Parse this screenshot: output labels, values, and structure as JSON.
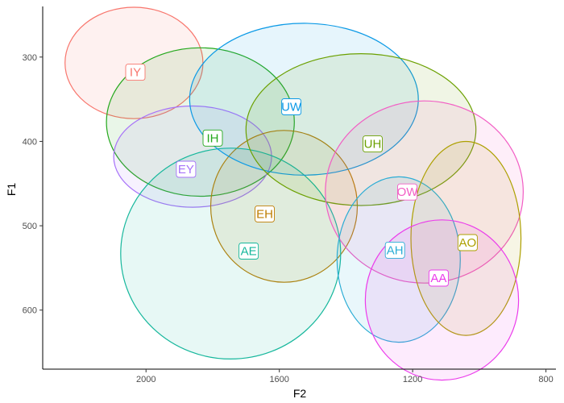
{
  "chart_data": {
    "type": "scatter",
    "subtype": "confidence-ellipses",
    "title": "",
    "xlabel": "F2",
    "ylabel": "F1",
    "x_reversed": true,
    "y_reversed": true,
    "xlim": [
      2310,
      770
    ],
    "ylim": [
      240,
      670
    ],
    "x_ticks": [
      2000,
      1600,
      1200,
      800
    ],
    "y_ticks": [
      300,
      400,
      500,
      600
    ],
    "grid": false,
    "legend": "none",
    "series": [
      {
        "name": "IY",
        "color": "#F8766D",
        "center_f2": 2036,
        "center_f1": 307,
        "rx_f2": 207,
        "ry_f1": 66,
        "label_f2": 2032,
        "label_f1": 318
      },
      {
        "name": "IH",
        "color": "#24A81C",
        "center_f2": 1837,
        "center_f1": 377,
        "rx_f2": 282,
        "ry_f1": 88,
        "label_f2": 1800,
        "label_f1": 396
      },
      {
        "name": "EY",
        "color": "#A772F9",
        "center_f2": 1860,
        "center_f1": 418,
        "rx_f2": 237,
        "ry_f1": 60,
        "label_f2": 1880,
        "label_f1": 433
      },
      {
        "name": "EH",
        "color": "#BD7C00",
        "center_f2": 1586,
        "center_f1": 477,
        "rx_f2": 220,
        "ry_f1": 90,
        "label_f2": 1644,
        "label_f1": 486
      },
      {
        "name": "AE",
        "color": "#16B79C",
        "center_f2": 1746,
        "center_f1": 533,
        "rx_f2": 330,
        "ry_f1": 125,
        "label_f2": 1692,
        "label_f1": 530
      },
      {
        "name": "UW",
        "color": "#0C9AE6",
        "center_f2": 1526,
        "center_f1": 350,
        "rx_f2": 343,
        "ry_f1": 90,
        "label_f2": 1564,
        "label_f1": 359
      },
      {
        "name": "UH",
        "color": "#6BA000",
        "center_f2": 1355,
        "center_f1": 386,
        "rx_f2": 345,
        "ry_f1": 90,
        "label_f2": 1320,
        "label_f1": 403
      },
      {
        "name": "OW",
        "color": "#F25DC4",
        "center_f2": 1165,
        "center_f1": 460,
        "rx_f2": 297,
        "ry_f1": 108,
        "label_f2": 1216,
        "label_f1": 460
      },
      {
        "name": "AH",
        "color": "#2AACD5",
        "center_f2": 1242,
        "center_f1": 540,
        "rx_f2": 185,
        "ry_f1": 98,
        "label_f2": 1253,
        "label_f1": 529
      },
      {
        "name": "AO",
        "color": "#ADA000",
        "center_f2": 1040,
        "center_f1": 515,
        "rx_f2": 165,
        "ry_f1": 115,
        "label_f2": 1035,
        "label_f1": 520
      },
      {
        "name": "AA",
        "color": "#EB3BEB",
        "center_f2": 1112,
        "center_f1": 588,
        "rx_f2": 230,
        "ry_f1": 95,
        "label_f2": 1122,
        "label_f1": 562
      }
    ]
  }
}
